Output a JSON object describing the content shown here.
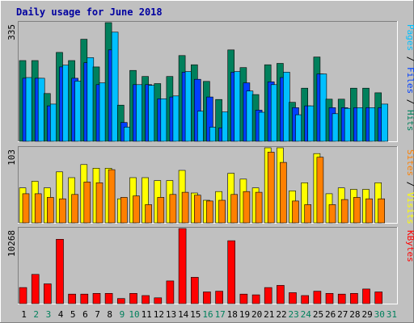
{
  "chart_data": {
    "type": "bar",
    "title": "Daily usage for June 2018",
    "days": [
      "1",
      "2",
      "3",
      "4",
      "5",
      "6",
      "7",
      "8",
      "9",
      "10",
      "11",
      "12",
      "13",
      "14",
      "15",
      "16",
      "17",
      "18",
      "19",
      "20",
      "21",
      "22",
      "23",
      "24",
      "25",
      "26",
      "27",
      "28",
      "29",
      "30",
      "31"
    ],
    "weekend_days": [
      "2",
      "3",
      "9",
      "10",
      "16",
      "17",
      "23",
      "24",
      "30",
      "31"
    ],
    "colors": {
      "background": "#c0c0c0",
      "panel": "#c0c0c0",
      "hits": "#00805c",
      "files": "#0040ff",
      "pages": "#00c0ff",
      "visits": "#ffff00",
      "sites": "#ff8000",
      "kbytes": "#ff0000",
      "title": "#0000a0",
      "weekday_label": "#000000",
      "weekend_label": "#00805c"
    },
    "panels": [
      {
        "id": "hits-files-pages",
        "ymax_label": "335",
        "ylim": [
          0,
          335
        ],
        "label_parts": [
          {
            "text": "Pages",
            "color": "#00c0ff"
          },
          {
            "text": " / ",
            "color": "#000000"
          },
          {
            "text": "Files",
            "color": "#0040ff"
          },
          {
            "text": " / ",
            "color": "#000000"
          },
          {
            "text": "Hits",
            "color": "#00805c"
          }
        ],
        "series": [
          {
            "name": "Hits",
            "color": "#00805c",
            "values": [
              228,
              228,
              135,
              251,
              228,
              288,
              210,
              335,
              102,
              200,
              183,
              163,
              183,
              242,
              216,
              169,
              118,
              258,
              208,
              132,
              216,
              220,
              110,
              150,
              238,
              119,
              119,
              150,
              150,
              137,
              0
            ]
          },
          {
            "name": "Files",
            "color": "#0040ff",
            "values": [
              178,
              178,
              100,
              210,
              178,
              222,
              160,
              258,
              53,
              160,
              160,
              120,
              125,
              195,
              175,
              125,
              38,
              195,
              165,
              88,
              168,
              180,
              95,
              100,
              190,
              95,
              95,
              95,
              95,
              95,
              0
            ]
          },
          {
            "name": "Pages",
            "color": "#00c0ff",
            "values": [
              180,
              178,
              105,
              215,
              170,
              236,
              165,
              308,
              40,
              160,
              158,
              120,
              128,
              197,
              85,
              40,
              83,
              197,
              142,
              82,
              160,
              195,
              75,
              100,
              190,
              78,
              93,
              95,
              95,
              105,
              0
            ]
          }
        ]
      },
      {
        "id": "visits-sites",
        "ymax_label": "103",
        "ylim": [
          0,
          103
        ],
        "label_parts": [
          {
            "text": "Sites",
            "color": "#ff8000"
          },
          {
            "text": " / ",
            "color": "#000000"
          },
          {
            "text": "Visits",
            "color": "#ffff00"
          }
        ],
        "series": [
          {
            "name": "Visits",
            "color": "#ffff00",
            "values": [
              48,
              57,
              48,
              70,
              62,
              80,
              75,
              75,
              33,
              62,
              62,
              58,
              58,
              72,
              41,
              31,
              43,
              68,
              60,
              48,
              103,
              103,
              44,
              55,
              95,
              40,
              48,
              46,
              46,
              55,
              0
            ]
          },
          {
            "name": "Sites",
            "color": "#ff8000",
            "values": [
              40,
              40,
              35,
              33,
              39,
              56,
              55,
              73,
              35,
              37,
              25,
              35,
              39,
              42,
              38,
              30,
              31,
              39,
              43,
              42,
              97,
              83,
              30,
              25,
              90,
              25,
              32,
              35,
              33,
              33,
              0
            ]
          }
        ]
      },
      {
        "id": "kbytes",
        "ymax_label": "10268",
        "ylim": [
          0,
          10268
        ],
        "label_parts": [
          {
            "text": "KBytes",
            "color": "#ff0000"
          }
        ],
        "series": [
          {
            "name": "KBytes",
            "color": "#ff0000",
            "values": [
              2200,
              4000,
              2700,
              8800,
              1300,
              1300,
              1400,
              1400,
              700,
              1400,
              1100,
              800,
              3100,
              10268,
              3600,
              1600,
              1700,
              8600,
              1300,
              1200,
              2200,
              2500,
              1500,
              1100,
              1700,
              1400,
              1300,
              1400,
              2000,
              1600,
              0
            ]
          }
        ]
      }
    ]
  }
}
